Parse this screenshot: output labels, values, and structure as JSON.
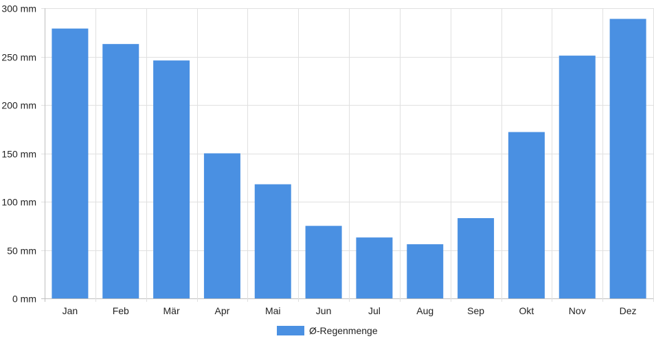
{
  "chart_data": {
    "type": "bar",
    "categories": [
      "Jan",
      "Feb",
      "Mär",
      "Apr",
      "Mai",
      "Jun",
      "Jul",
      "Aug",
      "Sep",
      "Okt",
      "Nov",
      "Dez"
    ],
    "series": [
      {
        "name": "Ø-Regenmenge",
        "color": "#4a90e2",
        "values": [
          279,
          263,
          246,
          150,
          118,
          75,
          63,
          56,
          83,
          172,
          251,
          289
        ]
      }
    ],
    "ylim": [
      0,
      300
    ],
    "yticks": [
      0,
      50,
      100,
      150,
      200,
      250,
      300
    ],
    "y_unit": "mm",
    "grid": true,
    "legend_position": "bottom"
  }
}
